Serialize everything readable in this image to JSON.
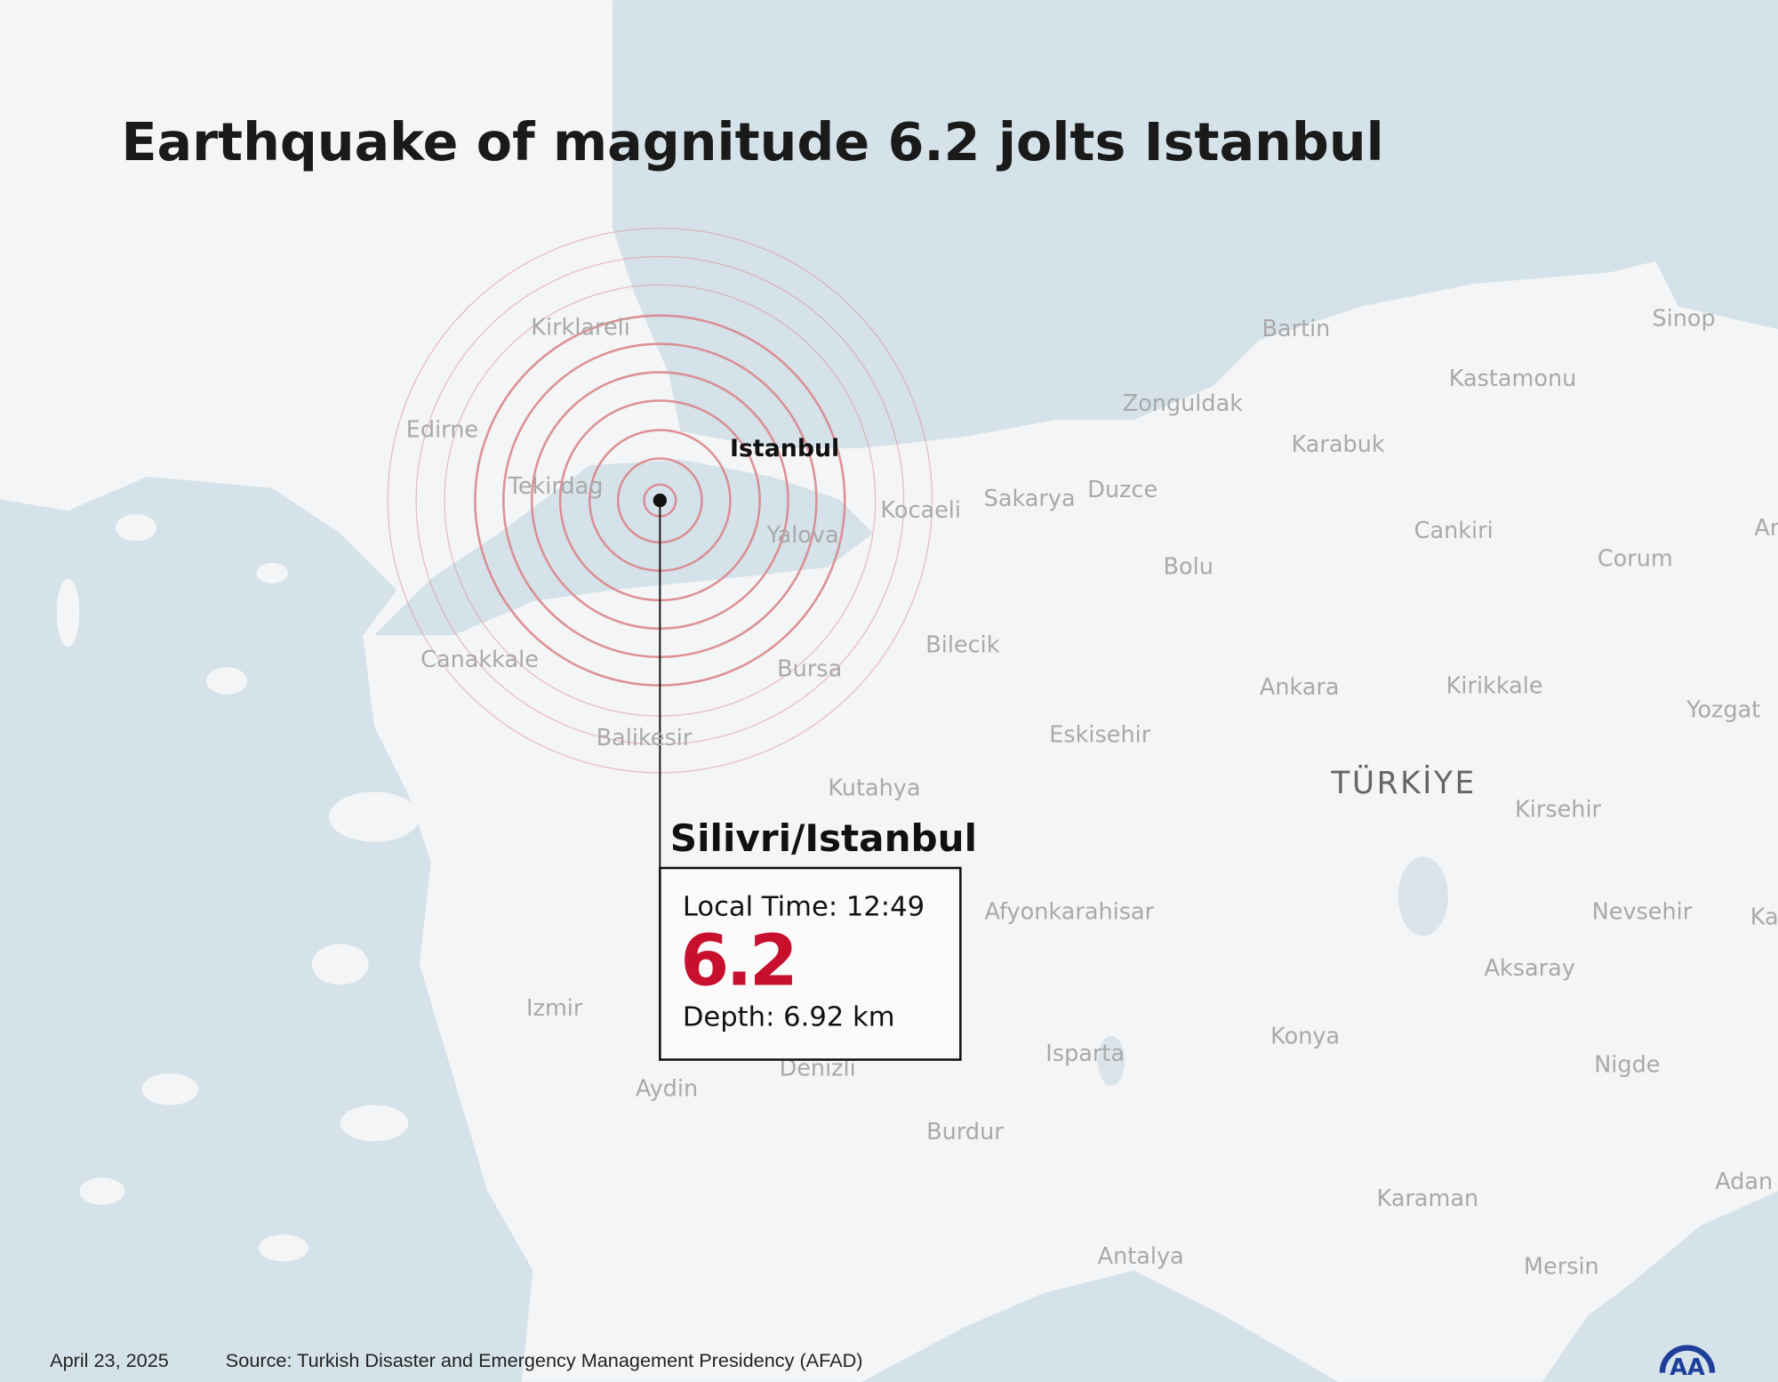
{
  "title": "Earthquake of magnitude 6.2 jolts Istanbul",
  "epicenter": {
    "place": "Silivri/Istanbul",
    "local_time": "Local Time: 12:49",
    "magnitude": "6.2",
    "depth": "Depth: 6.92 km"
  },
  "highlight_city": "Istanbul",
  "country_label": "TÜRKİYE",
  "cities": [
    "Kirklareli",
    "Edirne",
    "Tekirdag",
    "Yalova",
    "Kocaeli",
    "Sakarya",
    "Duzce",
    "Zonguldak",
    "Bartin",
    "Kastamonu",
    "Sinop",
    "Karabuk",
    "Cankiri",
    "Corum",
    "Bolu",
    "Bilecik",
    "Bursa",
    "Canakkale",
    "Balikesir",
    "Eskisehir",
    "Ankara",
    "Kirikkale",
    "Yozgat",
    "Kutahya",
    "Kirsehir",
    "Afyonkarahisar",
    "Nevsehir",
    "Aksaray",
    "Izmir",
    "Konya",
    "Isparta",
    "Nigde",
    "Denizli",
    "Aydin",
    "Burdur",
    "Karaman",
    "Antalya",
    "Mersin",
    "Ar",
    "Ka",
    "Adan"
  ],
  "footer": {
    "date": "April 23, 2025",
    "source": "Source: Turkish Disaster and Emergency Management Presidency (AFAD)"
  },
  "logo": "AA",
  "colors": {
    "sea": "#d6e2e9",
    "land": "#f4f5f6",
    "magnitude": "#c8102e",
    "rings": "#d9868c",
    "logo": "#1d3f9a"
  }
}
